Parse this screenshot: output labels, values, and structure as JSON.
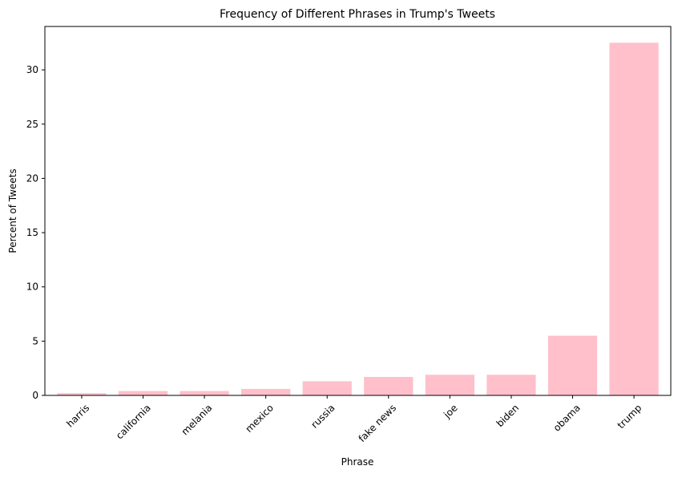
{
  "chart_data": {
    "type": "bar",
    "title": "Frequency of Different Phrases in Trump's Tweets",
    "xlabel": "Phrase",
    "ylabel": "Percent of Tweets",
    "categories": [
      "harris",
      "california",
      "melania",
      "mexico",
      "russia",
      "fake news",
      "joe",
      "biden",
      "obama",
      "trump"
    ],
    "values": [
      0.2,
      0.4,
      0.4,
      0.6,
      1.3,
      1.7,
      1.9,
      1.9,
      5.5,
      32.5
    ],
    "ylim": [
      0,
      34
    ],
    "yticks": [
      0,
      5,
      10,
      15,
      20,
      25,
      30
    ],
    "bar_color": "#ffc0cb",
    "grid": false,
    "legend": "none"
  }
}
